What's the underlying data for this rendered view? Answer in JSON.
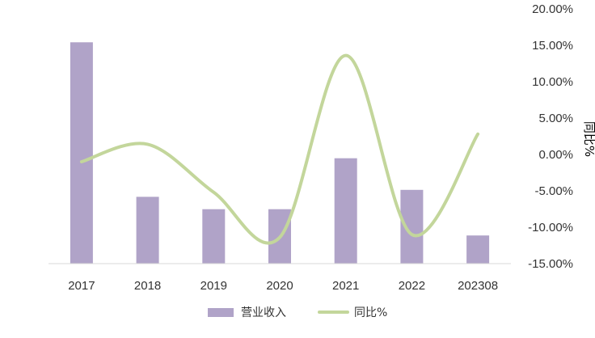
{
  "chart_data": {
    "type": "bar",
    "categories": [
      "2017",
      "2018",
      "2019",
      "2020",
      "2021",
      "2022",
      "202308"
    ],
    "series": [
      {
        "name": "营业收入",
        "type": "bar",
        "axis": "left",
        "color": "#b0a3c8",
        "values": [
          12.6,
          3.8,
          3.1,
          3.1,
          6.0,
          4.2,
          1.6
        ]
      },
      {
        "name": "同比%",
        "type": "line",
        "axis": "right",
        "color": "#c3d69b",
        "smooth": true,
        "values": [
          -1.0,
          1.4,
          -5.2,
          -11.4,
          13.6,
          -11.0,
          2.8
        ]
      }
    ],
    "y_left": {
      "min": 0,
      "max": 14.5
    },
    "y_right": {
      "label": "同比%",
      "min": -15,
      "max": 20,
      "step": 5,
      "tick_labels": [
        "20.00%",
        "15.00%",
        "10.00%",
        "5.00%",
        "0.00%",
        "-5.00%",
        "-10.00%",
        "-15.00%"
      ]
    },
    "grid": false,
    "legend": {
      "position": "bottom"
    }
  }
}
